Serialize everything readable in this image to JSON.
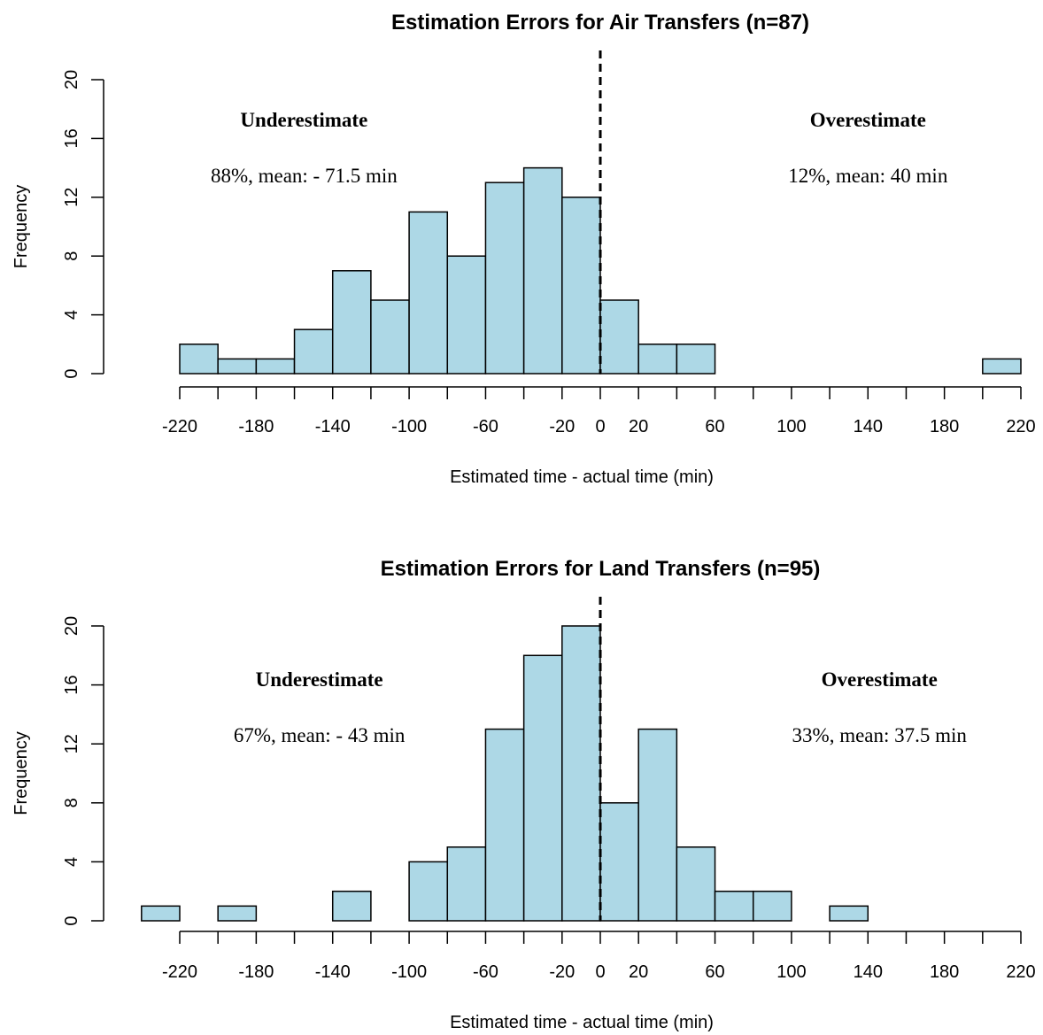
{
  "chart_data": [
    {
      "type": "bar",
      "title": "Estimation Errors for Air Transfers (n=87)",
      "xlabel": "Estimated time - actual time (min)",
      "ylabel": "Frequency",
      "bin_edges": [
        -220,
        -200,
        -180,
        -160,
        -140,
        -120,
        -100,
        -80,
        -60,
        -40,
        -20,
        0,
        20,
        40,
        60,
        80,
        100,
        120,
        140,
        160,
        180,
        200,
        220
      ],
      "values": [
        2,
        1,
        1,
        3,
        7,
        5,
        11,
        8,
        13,
        14,
        12,
        5,
        2,
        2,
        0,
        0,
        0,
        0,
        0,
        0,
        0,
        1
      ],
      "xlim": [
        -220,
        220
      ],
      "ylim": [
        0,
        20
      ],
      "xticks": [
        -220,
        -180,
        -140,
        -100,
        -60,
        -20,
        0,
        20,
        60,
        100,
        140,
        180,
        220
      ],
      "xtick_marks": [
        -220,
        -200,
        -180,
        -160,
        -140,
        -120,
        -100,
        -80,
        -60,
        -40,
        -20,
        0,
        20,
        40,
        60,
        80,
        100,
        120,
        140,
        160,
        180,
        200,
        220
      ],
      "yticks": [
        0,
        4,
        8,
        12,
        16,
        20
      ],
      "reference_line_x": 0,
      "annotations": [
        {
          "x": -155,
          "y": 17.3,
          "text": "Underestimate",
          "bold": true
        },
        {
          "x": -155,
          "y": 13.5,
          "text": "88%, mean: - 71.5 min",
          "bold": false
        },
        {
          "x": 140,
          "y": 17.3,
          "text": "Overestimate",
          "bold": true
        },
        {
          "x": 140,
          "y": 13.5,
          "text": "12%, mean: 40 min",
          "bold": false
        }
      ]
    },
    {
      "type": "bar",
      "title": "Estimation Errors for Land Transfers (n=95)",
      "xlabel": "Estimated time - actual time (min)",
      "ylabel": "Frequency",
      "bin_edges": [
        -240,
        -220,
        -200,
        -180,
        -160,
        -140,
        -120,
        -100,
        -80,
        -60,
        -40,
        -20,
        0,
        20,
        40,
        60,
        80,
        100,
        120,
        140
      ],
      "values": [
        1,
        0,
        1,
        0,
        0,
        2,
        0,
        4,
        5,
        13,
        18,
        20,
        8,
        13,
        5,
        2,
        2,
        0,
        1
      ],
      "xlim": [
        -220,
        220
      ],
      "ylim": [
        0,
        20
      ],
      "xticks": [
        -220,
        -180,
        -140,
        -100,
        -60,
        -20,
        0,
        20,
        60,
        100,
        140,
        180,
        220
      ],
      "xtick_marks": [
        -220,
        -200,
        -180,
        -160,
        -140,
        -120,
        -100,
        -80,
        -60,
        -40,
        -20,
        0,
        20,
        40,
        60,
        80,
        100,
        120,
        140,
        160,
        180,
        200,
        220
      ],
      "yticks": [
        0,
        4,
        8,
        12,
        16,
        20
      ],
      "reference_line_x": 0,
      "annotations": [
        {
          "x": -147,
          "y": 16.4,
          "text": "Underestimate",
          "bold": true
        },
        {
          "x": -147,
          "y": 12.6,
          "text": "67%, mean: - 43 min",
          "bold": false
        },
        {
          "x": 146,
          "y": 16.4,
          "text": "Overestimate",
          "bold": true
        },
        {
          "x": 146,
          "y": 12.6,
          "text": "33%, mean: 37.5 min",
          "bold": false
        }
      ]
    }
  ]
}
